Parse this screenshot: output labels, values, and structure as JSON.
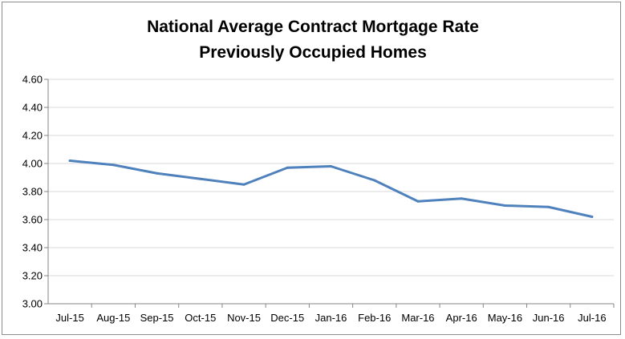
{
  "chart_data": {
    "type": "line",
    "title": "National Average Contract Mortgage Rate",
    "subtitle": "Previously Occupied Homes",
    "categories": [
      "Jul-15",
      "Aug-15",
      "Sep-15",
      "Oct-15",
      "Nov-15",
      "Dec-15",
      "Jan-16",
      "Feb-16",
      "Mar-16",
      "Apr-16",
      "May-16",
      "Jun-16",
      "Jul-16"
    ],
    "series": [
      {
        "values": [
          4.02,
          3.99,
          3.93,
          3.89,
          3.85,
          3.97,
          3.98,
          3.88,
          3.73,
          3.75,
          3.7,
          3.69,
          3.62
        ]
      }
    ],
    "ylim": [
      3.0,
      4.6
    ],
    "yticks": [
      "4.60",
      "4.40",
      "4.20",
      "4.00",
      "3.80",
      "3.60",
      "3.40",
      "3.20",
      "3.00"
    ],
    "grid": true,
    "legend": "none",
    "colors": {
      "series": "#4f81bd",
      "grid": "#d9d9d9",
      "axis": "#868686"
    }
  }
}
